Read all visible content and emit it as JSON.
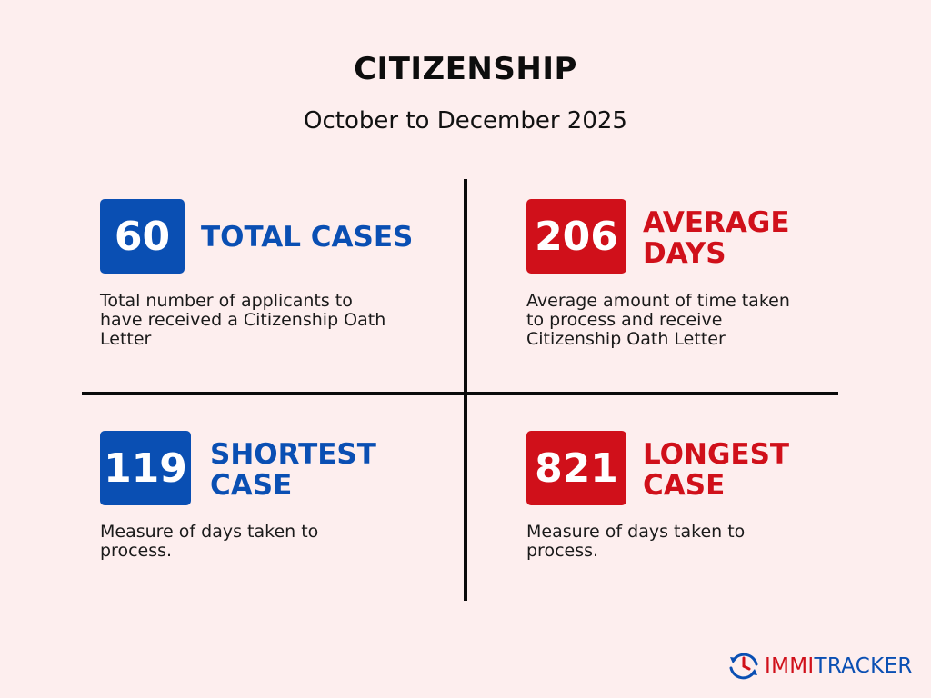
{
  "header": {
    "title": "CITIZENSHIP",
    "subtitle": "October to December 2025"
  },
  "stats": [
    {
      "value": "60",
      "label_line1": "TOTAL CASES",
      "label_line2": "",
      "description": [
        "Total number of applicants to",
        "have received a Citizenship Oath",
        "Letter"
      ],
      "color": "#0a4fb3"
    },
    {
      "value": "206",
      "label_line1": "AVERAGE",
      "label_line2": "DAYS",
      "description": [
        "Average amount of time taken",
        "to process and receive",
        "Citizenship Oath Letter"
      ],
      "color": "#d0101a"
    },
    {
      "value": "119",
      "label_line1": "SHORTEST",
      "label_line2": "CASE",
      "description": [
        "Measure of days taken to",
        "process."
      ],
      "color": "#0a4fb3"
    },
    {
      "value": "821",
      "label_line1": "LONGEST",
      "label_line2": "CASE",
      "description": [
        "Measure of days taken to",
        "process."
      ],
      "color": "#d0101a"
    }
  ],
  "logo": {
    "text_part1": "IMMI",
    "text_part2": "TRACKER",
    "icon": "clock-refresh-icon",
    "color_blue": "#0a4fb3",
    "color_red": "#d0101a"
  }
}
